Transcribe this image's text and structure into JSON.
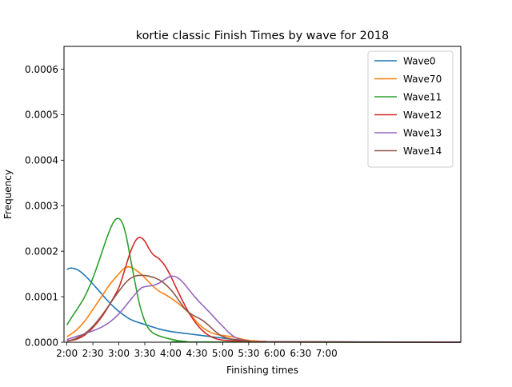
{
  "chart_data": {
    "type": "line",
    "title": "kortie classic Finish Times by wave for 2018",
    "xlabel": "Finishing times",
    "ylabel": "Frequency",
    "x_tick_values": [
      7200,
      9000,
      10800,
      12600,
      14400,
      16200,
      18000,
      19800,
      21600,
      23400,
      25200
    ],
    "x_tick_labels": [
      "2:00",
      "2:30",
      "3:00",
      "3:30",
      "4:00",
      "4:30",
      "5:00",
      "5:30",
      "6:00",
      "6:30",
      "7:00"
    ],
    "y_ticks": [
      0.0,
      0.0001,
      0.0002,
      0.0003,
      0.0004,
      0.0005,
      0.0006
    ],
    "y_tick_labels": [
      "0.0000",
      "0.0001",
      "0.0002",
      "0.0003",
      "0.0004",
      "0.0005",
      "0.0006"
    ],
    "xlim": [
      7000,
      34500
    ],
    "ylim": [
      0,
      0.00065
    ],
    "grid": false,
    "legend_position": "top-right",
    "x_unit": "seconds",
    "series": [
      {
        "name": "Wave0",
        "color": "#1f77b4",
        "points": [
          [
            7200,
            0.00016
          ],
          [
            7500,
            0.000163
          ],
          [
            8000,
            0.000158
          ],
          [
            8500,
            0.000145
          ],
          [
            9000,
            0.000128
          ],
          [
            9500,
            0.00011
          ],
          [
            10000,
            9.2e-05
          ],
          [
            10500,
            7.6e-05
          ],
          [
            11000,
            6.3e-05
          ],
          [
            11500,
            5.2e-05
          ],
          [
            12000,
            4.5e-05
          ],
          [
            12500,
            4e-05
          ],
          [
            13000,
            3.5e-05
          ],
          [
            13500,
            3e-05
          ],
          [
            14000,
            2.6e-05
          ],
          [
            14500,
            2.3e-05
          ],
          [
            15000,
            2.1e-05
          ],
          [
            15500,
            1.9e-05
          ],
          [
            16000,
            1.7e-05
          ],
          [
            16500,
            1.5e-05
          ],
          [
            17000,
            1.3e-05
          ],
          [
            17500,
            1.1e-05
          ],
          [
            18000,
            9e-06
          ],
          [
            18500,
            7e-06
          ],
          [
            19000,
            5e-06
          ],
          [
            19500,
            4e-06
          ],
          [
            20000,
            3e-06
          ],
          [
            21000,
            1.5e-06
          ],
          [
            22000,
            1e-06
          ],
          [
            34500,
            0.0
          ]
        ]
      },
      {
        "name": "Wave70",
        "color": "#ff7f0e",
        "points": [
          [
            7200,
            1.2e-05
          ],
          [
            7800,
            2.5e-05
          ],
          [
            8400,
            4.5e-05
          ],
          [
            9000,
            7.2e-05
          ],
          [
            9600,
            0.0001
          ],
          [
            10200,
            0.000128
          ],
          [
            10800,
            0.00015
          ],
          [
            11200,
            0.000163
          ],
          [
            11600,
            0.000165
          ],
          [
            12000,
            0.000158
          ],
          [
            12400,
            0.000148
          ],
          [
            12800,
            0.000135
          ],
          [
            13200,
            0.000122
          ],
          [
            13600,
            0.000112
          ],
          [
            14000,
            0.000105
          ],
          [
            14400,
            9.7e-05
          ],
          [
            14800,
            8.8e-05
          ],
          [
            15200,
            7.8e-05
          ],
          [
            15600,
            6.6e-05
          ],
          [
            16000,
            5.2e-05
          ],
          [
            16400,
            3.8e-05
          ],
          [
            16800,
            2.8e-05
          ],
          [
            17200,
            2.1e-05
          ],
          [
            17600,
            1.7e-05
          ],
          [
            18000,
            1.5e-05
          ],
          [
            18400,
            1.3e-05
          ],
          [
            18800,
            1.1e-05
          ],
          [
            19200,
            8e-06
          ],
          [
            19600,
            5e-06
          ],
          [
            20200,
            3e-06
          ],
          [
            21000,
            1.5e-06
          ],
          [
            22000,
            5e-07
          ],
          [
            34500,
            0.0
          ]
        ]
      },
      {
        "name": "Wave11",
        "color": "#2ca02c",
        "points": [
          [
            7200,
            3.8e-05
          ],
          [
            7600,
            5.8e-05
          ],
          [
            8000,
            7.7e-05
          ],
          [
            8400,
            9.8e-05
          ],
          [
            8800,
            0.000125
          ],
          [
            9200,
            0.000158
          ],
          [
            9600,
            0.000195
          ],
          [
            10000,
            0.000232
          ],
          [
            10400,
            0.000262
          ],
          [
            10700,
            0.000272
          ],
          [
            11000,
            0.000265
          ],
          [
            11300,
            0.000235
          ],
          [
            11600,
            0.000185
          ],
          [
            11900,
            0.000135
          ],
          [
            12200,
            8.8e-05
          ],
          [
            12500,
            5.5e-05
          ],
          [
            12800,
            3.3e-05
          ],
          [
            13100,
            2.2e-05
          ],
          [
            13500,
            1.5e-05
          ],
          [
            14000,
            1e-05
          ],
          [
            14500,
            6e-06
          ],
          [
            15000,
            3e-06
          ],
          [
            15500,
            1.5e-06
          ],
          [
            16000,
            5e-07
          ],
          [
            34500,
            0.0
          ]
        ]
      },
      {
        "name": "Wave12",
        "color": "#d62728",
        "points": [
          [
            7200,
            3e-06
          ],
          [
            7800,
            6e-06
          ],
          [
            8400,
            1.5e-05
          ],
          [
            9000,
            3.2e-05
          ],
          [
            9600,
            5.5e-05
          ],
          [
            10200,
            8.5e-05
          ],
          [
            10800,
            0.00012
          ],
          [
            11200,
            0.000158
          ],
          [
            11600,
            0.000198
          ],
          [
            12000,
            0.000225
          ],
          [
            12300,
            0.00023
          ],
          [
            12600,
            0.000222
          ],
          [
            12900,
            0.000205
          ],
          [
            13200,
            0.000192
          ],
          [
            13600,
            0.000183
          ],
          [
            14000,
            0.000168
          ],
          [
            14400,
            0.000145
          ],
          [
            14800,
            0.000118
          ],
          [
            15200,
            9.2e-05
          ],
          [
            15600,
            6.8e-05
          ],
          [
            16000,
            4.8e-05
          ],
          [
            16400,
            3.2e-05
          ],
          [
            16800,
            2e-05
          ],
          [
            17200,
            1.2e-05
          ],
          [
            17600,
            7e-06
          ],
          [
            18200,
            4e-06
          ],
          [
            19000,
            3e-06
          ],
          [
            19800,
            2e-06
          ],
          [
            20600,
            1e-06
          ],
          [
            34500,
            0.0
          ]
        ]
      },
      {
        "name": "Wave13",
        "color": "#9467bd",
        "points": [
          [
            7200,
            6e-06
          ],
          [
            7800,
            1.2e-05
          ],
          [
            8400,
            1.8e-05
          ],
          [
            9000,
            2.5e-05
          ],
          [
            9600,
            3.3e-05
          ],
          [
            10200,
            4.5e-05
          ],
          [
            10800,
            6.2e-05
          ],
          [
            11400,
            8.5e-05
          ],
          [
            12000,
            0.000108
          ],
          [
            12400,
            0.00012
          ],
          [
            12800,
            0.000123
          ],
          [
            13200,
            0.000125
          ],
          [
            13600,
            0.00013
          ],
          [
            14000,
            0.000138
          ],
          [
            14400,
            0.000145
          ],
          [
            14800,
            0.000143
          ],
          [
            15200,
            0.000133
          ],
          [
            15600,
            0.000118
          ],
          [
            16000,
            0.000102
          ],
          [
            16400,
            8.8e-05
          ],
          [
            16800,
            7.5e-05
          ],
          [
            17200,
            6.2e-05
          ],
          [
            17600,
            4.8e-05
          ],
          [
            18000,
            3.5e-05
          ],
          [
            18400,
            2.2e-05
          ],
          [
            18800,
            1.2e-05
          ],
          [
            19200,
            6e-06
          ],
          [
            19800,
            3e-06
          ],
          [
            20600,
            1e-06
          ],
          [
            34500,
            0.0
          ]
        ]
      },
      {
        "name": "Wave14",
        "color": "#8c564b",
        "points": [
          [
            7200,
            2e-06
          ],
          [
            7800,
            8e-06
          ],
          [
            8400,
            1.8e-05
          ],
          [
            9000,
            3.5e-05
          ],
          [
            9600,
            5.8e-05
          ],
          [
            10200,
            8.5e-05
          ],
          [
            10800,
            0.000112
          ],
          [
            11400,
            0.000135
          ],
          [
            11900,
            0.000145
          ],
          [
            12400,
            0.000147
          ],
          [
            12900,
            0.000145
          ],
          [
            13400,
            0.00014
          ],
          [
            13800,
            0.000133
          ],
          [
            14200,
            0.000122
          ],
          [
            14600,
            0.000108
          ],
          [
            15000,
            9e-05
          ],
          [
            15400,
            7.3e-05
          ],
          [
            15800,
            6.2e-05
          ],
          [
            16200,
            5.5e-05
          ],
          [
            16600,
            4.8e-05
          ],
          [
            17000,
            3.8e-05
          ],
          [
            17400,
            2.6e-05
          ],
          [
            17800,
            1.6e-05
          ],
          [
            18200,
            1e-05
          ],
          [
            18600,
            7e-06
          ],
          [
            19200,
            5e-06
          ],
          [
            19800,
            3e-06
          ],
          [
            20600,
            1e-06
          ],
          [
            34500,
            0.0
          ]
        ]
      }
    ]
  }
}
